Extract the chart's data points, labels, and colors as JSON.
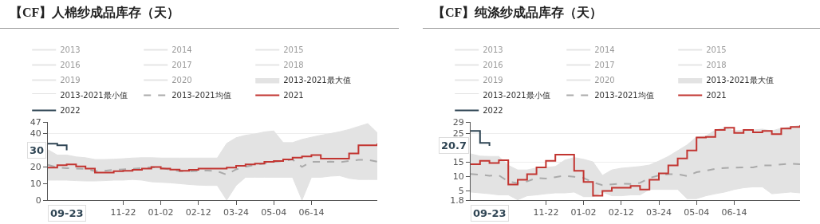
{
  "chart_data": [
    {
      "type": "line",
      "title": "【CF】人棉纱成品库存（天）",
      "legend": "top",
      "grid": "y",
      "categories": [
        null,
        null,
        null,
        null,
        null,
        null,
        null,
        null,
        "11-22",
        null,
        null,
        null,
        "01-02",
        null,
        null,
        null,
        "02-12",
        null,
        null,
        null,
        "03-24",
        null,
        null,
        null,
        "05-04",
        null,
        null,
        null,
        "06-14",
        null,
        null,
        null,
        null,
        null,
        null,
        null
      ],
      "ylim": [
        0,
        47
      ],
      "yticks": [
        0,
        10,
        20,
        40,
        47
      ],
      "annotations": [
        {
          "text": "09-23"
        },
        {
          "text": "30",
          "y": 30
        }
      ],
      "series": [
        {
          "name": "2013",
          "color": "#cccccc",
          "values": [
            null,
            null,
            null,
            null,
            null,
            null,
            null,
            null,
            null,
            null,
            null,
            null,
            null,
            null,
            null,
            null,
            null,
            null,
            null,
            null,
            null,
            null,
            null,
            null,
            null,
            null,
            null,
            null,
            null,
            null,
            null,
            null,
            null,
            null,
            null,
            null
          ]
        },
        {
          "name": "2014",
          "color": "#cccccc",
          "values": [
            null,
            null,
            null,
            null,
            null,
            null,
            null,
            null,
            null,
            null,
            null,
            null,
            null,
            null,
            null,
            null,
            null,
            null,
            null,
            null,
            null,
            null,
            null,
            null,
            null,
            null,
            null,
            null,
            null,
            null,
            null,
            null,
            null,
            null,
            null,
            null
          ]
        },
        {
          "name": "2015",
          "color": "#cccccc",
          "values": [
            null,
            null,
            null,
            null,
            null,
            null,
            null,
            null,
            null,
            null,
            null,
            null,
            null,
            null,
            null,
            null,
            null,
            null,
            null,
            null,
            null,
            null,
            null,
            null,
            null,
            null,
            null,
            null,
            null,
            null,
            null,
            null,
            null,
            null,
            null,
            null
          ]
        },
        {
          "name": "2016",
          "color": "#cccccc",
          "values": [
            null,
            null,
            null,
            null,
            null,
            null,
            null,
            null,
            null,
            null,
            null,
            null,
            null,
            null,
            null,
            null,
            null,
            null,
            null,
            null,
            null,
            null,
            null,
            null,
            null,
            null,
            null,
            null,
            null,
            null,
            null,
            null,
            null,
            null,
            null,
            null
          ]
        },
        {
          "name": "2017",
          "color": "#cccccc",
          "values": [
            null,
            null,
            null,
            null,
            null,
            null,
            null,
            null,
            null,
            null,
            null,
            null,
            null,
            null,
            null,
            null,
            null,
            null,
            null,
            null,
            null,
            null,
            null,
            null,
            null,
            null,
            null,
            null,
            null,
            null,
            null,
            null,
            null,
            null,
            null,
            null
          ]
        },
        {
          "name": "2018",
          "color": "#cccccc",
          "values": [
            null,
            null,
            null,
            null,
            null,
            null,
            null,
            null,
            null,
            null,
            null,
            null,
            null,
            null,
            null,
            null,
            null,
            null,
            null,
            null,
            null,
            null,
            null,
            null,
            null,
            null,
            null,
            null,
            null,
            null,
            null,
            null,
            null,
            null,
            null,
            null
          ]
        },
        {
          "name": "2019",
          "color": "#cccccc",
          "values": [
            null,
            null,
            null,
            null,
            null,
            null,
            null,
            null,
            null,
            null,
            null,
            null,
            null,
            null,
            null,
            null,
            null,
            null,
            null,
            null,
            null,
            null,
            null,
            null,
            null,
            null,
            null,
            null,
            null,
            null,
            null,
            null,
            null,
            null,
            null,
            null
          ]
        },
        {
          "name": "2020",
          "color": "#cccccc",
          "values": [
            null,
            null,
            null,
            null,
            null,
            null,
            null,
            null,
            null,
            null,
            null,
            null,
            null,
            null,
            null,
            null,
            null,
            null,
            null,
            null,
            null,
            null,
            null,
            null,
            null,
            null,
            null,
            null,
            null,
            null,
            null,
            null,
            null,
            null,
            null,
            null
          ]
        },
        {
          "name": "2013-2021最大值",
          "type": "area",
          "color": "#e3e3e3",
          "values": [
            30.3,
            27.1,
            27.1,
            26,
            25.5,
            24.4,
            24.4,
            24.6,
            24.9,
            25.3,
            25.5,
            25.5,
            25.3,
            25.3,
            25.3,
            25.3,
            25.3,
            25.3,
            25.3,
            34.1,
            37.5,
            39,
            39.8,
            41,
            41.6,
            34.6,
            34.6,
            36.5,
            37.8,
            39,
            40,
            41.1,
            42.5,
            44.3,
            46,
            40.5
          ]
        },
        {
          "name": "2013-2021最小值",
          "type": "area",
          "color": "#ffffff",
          "values": [
            12,
            12,
            12,
            11.7,
            11.5,
            11.5,
            11.7,
            12,
            12,
            12.4,
            12,
            11,
            10.7,
            10.4,
            9.9,
            9.4,
            9,
            8.8,
            8.8,
            0,
            8.8,
            13.7,
            13.7,
            13.7,
            13.7,
            13.7,
            13.7,
            0,
            13.7,
            13.7,
            14.4,
            14.7,
            13.1,
            12.4,
            12.4,
            12.4
          ]
        },
        {
          "name": "2013-2021均值",
          "type": "line",
          "line_style": "dashed",
          "color": "#aaaaaa",
          "values": [
            21.2,
            19.6,
            19.2,
            19,
            18.8,
            17.4,
            17.6,
            18.2,
            18.5,
            18.8,
            19.2,
            19.8,
            19.4,
            18.3,
            17.4,
            17.2,
            17.6,
            17.8,
            17.4,
            15.3,
            18.5,
            20,
            21.2,
            22,
            23,
            23.5,
            24.4,
            20,
            23,
            23,
            23.1,
            22.8,
            23.5,
            24.2,
            24.2,
            23.1
          ]
        },
        {
          "name": "2021",
          "type": "step",
          "color": "#c23531",
          "values": [
            19.6,
            21,
            21.5,
            20.3,
            19,
            16.6,
            16.6,
            17.4,
            17.6,
            18.2,
            19,
            19.9,
            19,
            18.3,
            17.6,
            18.2,
            19,
            19,
            19,
            19.6,
            20.6,
            21.5,
            22,
            23,
            23.5,
            24.5,
            25.5,
            26.3,
            27.1,
            24.9,
            24.9,
            24.9,
            28,
            33,
            33,
            34.1
          ]
        },
        {
          "name": "2022",
          "type": "step",
          "color": "#2f4554",
          "values": [
            33.9,
            33,
            30,
            null,
            null,
            null,
            null,
            null,
            null,
            null,
            null,
            null,
            null,
            null,
            null,
            null,
            null,
            null,
            null,
            null,
            null,
            null,
            null,
            null,
            null,
            null,
            null,
            null,
            null,
            null,
            null,
            null,
            null,
            null,
            null,
            null
          ]
        }
      ]
    },
    {
      "type": "line",
      "title": "【CF】纯涤纱成品库存（天）",
      "legend": "top",
      "grid": "y",
      "categories": [
        null,
        null,
        null,
        null,
        null,
        null,
        null,
        null,
        "11-22",
        null,
        null,
        null,
        "01-02",
        null,
        null,
        null,
        "02-12",
        null,
        null,
        null,
        "03-24",
        null,
        null,
        null,
        "05-04",
        null,
        null,
        null,
        "06-14",
        null,
        null,
        null,
        null,
        null,
        null,
        null
      ],
      "ylim": [
        1.8,
        29
      ],
      "yticks": [
        1.8,
        5,
        10,
        15,
        25,
        29
      ],
      "annotations": [
        {
          "text": "09-23"
        },
        {
          "text": "20.7",
          "y": 20.7
        }
      ],
      "series": [
        {
          "name": "2013",
          "color": "#cccccc",
          "values": [
            null,
            null,
            null,
            null,
            null,
            null,
            null,
            null,
            null,
            null,
            null,
            null,
            null,
            null,
            null,
            null,
            null,
            null,
            null,
            null,
            null,
            null,
            null,
            null,
            null,
            null,
            null,
            null,
            null,
            null,
            null,
            null,
            null,
            null,
            null,
            null
          ]
        },
        {
          "name": "2014",
          "color": "#cccccc",
          "values": [
            null,
            null,
            null,
            null,
            null,
            null,
            null,
            null,
            null,
            null,
            null,
            null,
            null,
            null,
            null,
            null,
            null,
            null,
            null,
            null,
            null,
            null,
            null,
            null,
            null,
            null,
            null,
            null,
            null,
            null,
            null,
            null,
            null,
            null,
            null,
            null
          ]
        },
        {
          "name": "2015",
          "color": "#cccccc",
          "values": [
            null,
            null,
            null,
            null,
            null,
            null,
            null,
            null,
            null,
            null,
            null,
            null,
            null,
            null,
            null,
            null,
            null,
            null,
            null,
            null,
            null,
            null,
            null,
            null,
            null,
            null,
            null,
            null,
            null,
            null,
            null,
            null,
            null,
            null,
            null,
            null
          ]
        },
        {
          "name": "2016",
          "color": "#cccccc",
          "values": [
            null,
            null,
            null,
            null,
            null,
            null,
            null,
            null,
            null,
            null,
            null,
            null,
            null,
            null,
            null,
            null,
            null,
            null,
            null,
            null,
            null,
            null,
            null,
            null,
            null,
            null,
            null,
            null,
            null,
            null,
            null,
            null,
            null,
            null,
            null,
            null
          ]
        },
        {
          "name": "2017",
          "color": "#cccccc",
          "values": [
            null,
            null,
            null,
            null,
            null,
            null,
            null,
            null,
            null,
            null,
            null,
            null,
            null,
            null,
            null,
            null,
            null,
            null,
            null,
            null,
            null,
            null,
            null,
            null,
            null,
            null,
            null,
            null,
            null,
            null,
            null,
            null,
            null,
            null,
            null,
            null
          ]
        },
        {
          "name": "2018",
          "color": "#cccccc",
          "values": [
            null,
            null,
            null,
            null,
            null,
            null,
            null,
            null,
            null,
            null,
            null,
            null,
            null,
            null,
            null,
            null,
            null,
            null,
            null,
            null,
            null,
            null,
            null,
            null,
            null,
            null,
            null,
            null,
            null,
            null,
            null,
            null,
            null,
            null,
            null,
            null
          ]
        },
        {
          "name": "2019",
          "color": "#cccccc",
          "values": [
            null,
            null,
            null,
            null,
            null,
            null,
            null,
            null,
            null,
            null,
            null,
            null,
            null,
            null,
            null,
            null,
            null,
            null,
            null,
            null,
            null,
            null,
            null,
            null,
            null,
            null,
            null,
            null,
            null,
            null,
            null,
            null,
            null,
            null,
            null,
            null
          ]
        },
        {
          "name": "2020",
          "color": "#cccccc",
          "values": [
            null,
            null,
            null,
            null,
            null,
            null,
            null,
            null,
            null,
            null,
            null,
            null,
            null,
            null,
            null,
            null,
            null,
            null,
            null,
            null,
            null,
            null,
            null,
            null,
            null,
            null,
            null,
            null,
            null,
            null,
            null,
            null,
            null,
            null,
            null,
            null
          ]
        },
        {
          "name": "2013-2021最大值",
          "type": "area",
          "color": "#e3e3e3",
          "values": [
            17.9,
            17.1,
            17,
            17,
            13.9,
            12.3,
            12.3,
            13,
            13.2,
            13.5,
            15.7,
            16.6,
            16,
            15.1,
            10.4,
            12.3,
            12.9,
            13.2,
            13.5,
            14,
            15.4,
            17,
            19,
            21,
            23.8,
            24.1,
            26.2,
            27,
            25.9,
            26.2,
            26.2,
            26.5,
            25.9,
            26.8,
            27.3,
            27.8
          ]
        },
        {
          "name": "2013-2021最小值",
          "type": "area",
          "color": "#ffffff",
          "values": [
            4.6,
            4.3,
            4,
            3.6,
            3.6,
            1.9,
            3.3,
            3.6,
            4,
            4.3,
            4.3,
            4.6,
            3,
            3,
            4.6,
            3.3,
            3.3,
            3.6,
            3.6,
            5.5,
            5.5,
            5.5,
            5.5,
            2.3,
            2.3,
            3.3,
            4,
            4.6,
            5.5,
            6.1,
            6.4,
            6.4,
            4,
            4.3,
            4.6,
            4.3
          ]
        },
        {
          "name": "2013-2021均值",
          "type": "line",
          "line_style": "dashed",
          "color": "#aaaaaa",
          "values": [
            10.9,
            10.6,
            10.3,
            10.4,
            8.3,
            7.7,
            8.3,
            9.5,
            9.3,
            9.8,
            10.3,
            9.9,
            9.5,
            8,
            7,
            7.3,
            7.5,
            7.4,
            7.8,
            9.5,
            10.4,
            10.8,
            10.8,
            10.2,
            11.5,
            12,
            12.7,
            13,
            13.1,
            13.2,
            13.2,
            13.9,
            13.9,
            14.2,
            14.5,
            14.3
          ]
        },
        {
          "name": "2021",
          "type": "step",
          "color": "#c23531",
          "values": [
            14.3,
            15.5,
            14.7,
            15.7,
            7.2,
            8.9,
            10.8,
            13.2,
            15.5,
            17.6,
            17.6,
            12,
            8.1,
            3.3,
            5,
            6.1,
            6.1,
            6.7,
            5.5,
            8.9,
            11.1,
            13.9,
            16.3,
            19.1,
            23.6,
            23.8,
            26.2,
            27,
            25.2,
            26.2,
            25.4,
            25.9,
            24.8,
            26.7,
            27.3,
            27.8
          ]
        },
        {
          "name": "2022",
          "type": "step",
          "color": "#2f4554",
          "values": [
            25.9,
            21.7,
            20.7,
            null,
            null,
            null,
            null,
            null,
            null,
            null,
            null,
            null,
            null,
            null,
            null,
            null,
            null,
            null,
            null,
            null,
            null,
            null,
            null,
            null,
            null,
            null,
            null,
            null,
            null,
            null,
            null,
            null,
            null,
            null,
            null,
            null
          ]
        }
      ]
    }
  ]
}
